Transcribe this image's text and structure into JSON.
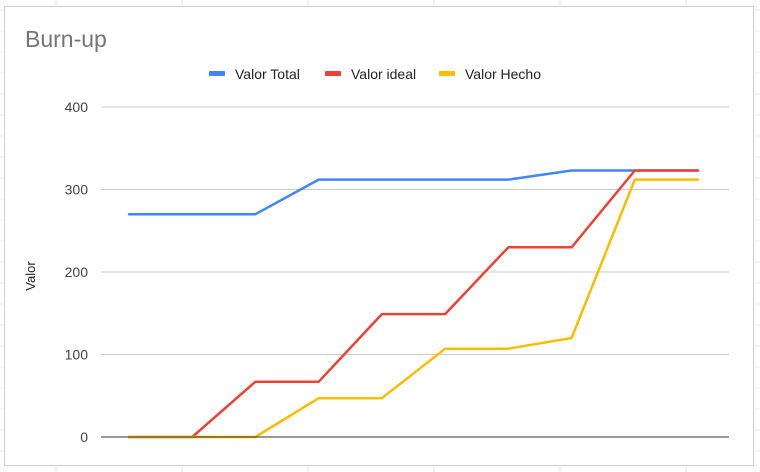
{
  "chart_data": {
    "type": "line",
    "title": "Burn-up",
    "xlabel": "",
    "ylabel": "Valor",
    "ylim": [
      0,
      400
    ],
    "yticks": [
      0,
      100,
      200,
      300,
      400
    ],
    "x": [
      1,
      2,
      3,
      4,
      5,
      6,
      7,
      8,
      9,
      10
    ],
    "grid": true,
    "legend": "top",
    "series": [
      {
        "name": "Valor Total",
        "color": "#4285f4",
        "values": [
          270,
          270,
          270,
          312,
          312,
          312,
          312,
          323,
          323,
          323
        ]
      },
      {
        "name": "Valor ideal",
        "color": "#ea4335",
        "values": [
          0,
          0,
          67,
          67,
          149,
          149,
          230,
          230,
          323,
          323
        ]
      },
      {
        "name": "Valor Hecho",
        "color": "#fbbc04",
        "values": [
          0,
          0,
          0,
          47,
          47,
          107,
          107,
          120,
          312,
          312
        ]
      }
    ]
  }
}
